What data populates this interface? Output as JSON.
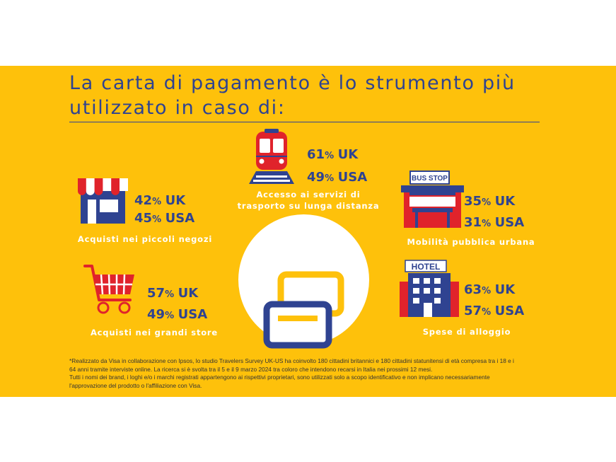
{
  "title": {
    "line1": "La carta di pagamento è lo strumento più",
    "line2": "utilizzato in caso di:"
  },
  "colors": {
    "background": "#fec10b",
    "primary_blue": "#2f4391",
    "accent_red": "#e0232b"
  },
  "items": [
    {
      "id": "transport",
      "icon": "train-icon",
      "uk_value": "61",
      "usa_value": "49",
      "pct": "%",
      "uk_label": "UK",
      "usa_label": "USA",
      "caption_line1": "Accesso ai servizi di",
      "caption_line2": "trasporto su lunga distanza"
    },
    {
      "id": "small-shops",
      "icon": "shop-icon",
      "uk_value": "42",
      "usa_value": "45",
      "pct": "%",
      "uk_label": "UK",
      "usa_label": "USA",
      "caption_line1": "Acquisti nei piccoli negozi"
    },
    {
      "id": "urban-mobility",
      "icon": "bus-stop-icon",
      "icon_text": "BUS STOP",
      "uk_value": "35",
      "usa_value": "31",
      "pct": "%",
      "uk_label": "UK",
      "usa_label": "USA",
      "caption_line1": "Mobilità pubblica urbana"
    },
    {
      "id": "big-stores",
      "icon": "shopping-cart-icon",
      "uk_value": "57",
      "usa_value": "49",
      "pct": "%",
      "uk_label": "UK",
      "usa_label": "USA",
      "caption_line1": "Acquisti nei grandi store"
    },
    {
      "id": "lodging",
      "icon": "hotel-icon",
      "icon_text": "HOTEL",
      "uk_value": "63",
      "usa_value": "57",
      "pct": "%",
      "uk_label": "UK",
      "usa_label": "USA",
      "caption_line1": "Spese di alloggio"
    }
  ],
  "center_icon": "payment-cards-icon",
  "footnote": {
    "line1": "*Realizzato da Visa in collaborazione con Ipsos, lo studio Travelers Survey UK-US ha coinvolto 180 cittadini britannici e 180 cittadini statunitensi di età compresa tra i 18 e i",
    "line2": "64 anni tramite interviste online. La ricerca si è svolta tra il 5 e il 9 marzo 2024 tra coloro che intendono recarsi in Italia nei prossimi 12 mesi.",
    "line3": "Tutti i nomi dei brand, i loghi e/o i marchi registrati appartengono ai rispettivi proprietari, sono utilizzati solo a scopo identificativo e non implicano necessariamente",
    "line4": "l'approvazione del prodotto o l'affiliazione con Visa."
  }
}
